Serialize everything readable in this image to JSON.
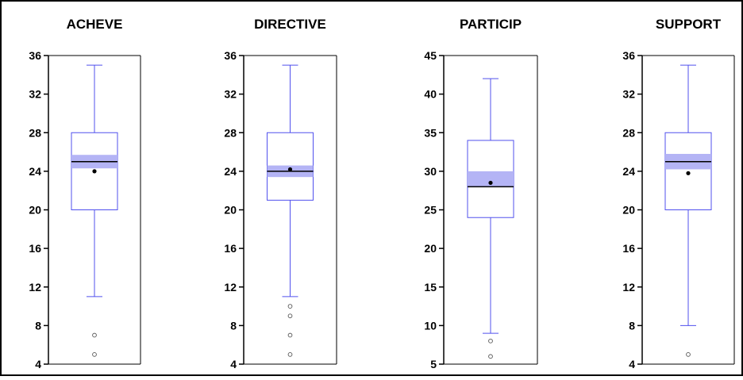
{
  "chart_data": [
    {
      "type": "boxplot",
      "title": "ACHEVE",
      "ylim": [
        4,
        36
      ],
      "yticks": [
        4,
        8,
        12,
        16,
        20,
        24,
        28,
        32,
        36
      ],
      "box": {
        "q1": 20,
        "median": 25,
        "q3": 28,
        "whisker_low": 11,
        "whisker_high": 35,
        "mean": 24,
        "ci_low": 24.3,
        "ci_high": 25.7
      },
      "outliers": [
        7,
        5
      ]
    },
    {
      "type": "boxplot",
      "title": "DIRECTIVE",
      "ylim": [
        4,
        36
      ],
      "yticks": [
        4,
        8,
        12,
        16,
        20,
        24,
        28,
        32,
        36
      ],
      "box": {
        "q1": 21,
        "median": 24,
        "q3": 28,
        "whisker_low": 11,
        "whisker_high": 35,
        "mean": 24.2,
        "ci_low": 23.4,
        "ci_high": 24.6
      },
      "outliers": [
        10,
        9,
        7,
        5
      ]
    },
    {
      "type": "boxplot",
      "title": "PARTICIP",
      "ylim": [
        5,
        45
      ],
      "yticks": [
        5,
        10,
        15,
        20,
        25,
        30,
        35,
        40,
        45
      ],
      "box": {
        "q1": 24,
        "median": 28,
        "q3": 34,
        "whisker_low": 9,
        "whisker_high": 42,
        "mean": 28.5,
        "ci_low": 28,
        "ci_high": 30
      },
      "outliers": [
        8,
        6
      ]
    },
    {
      "type": "boxplot",
      "title": "SUPPORT",
      "ylim": [
        4,
        36
      ],
      "yticks": [
        4,
        8,
        12,
        16,
        20,
        24,
        28,
        32,
        36
      ],
      "box": {
        "q1": 20,
        "median": 25,
        "q3": 28,
        "whisker_low": 8,
        "whisker_high": 35,
        "mean": 23.8,
        "ci_low": 24.2,
        "ci_high": 25.8
      },
      "outliers": [
        5
      ]
    }
  ],
  "colors": {
    "box": "#5050ee",
    "notch_fill": "#b4b4f5",
    "median": "#000000",
    "frame": "#000000"
  }
}
